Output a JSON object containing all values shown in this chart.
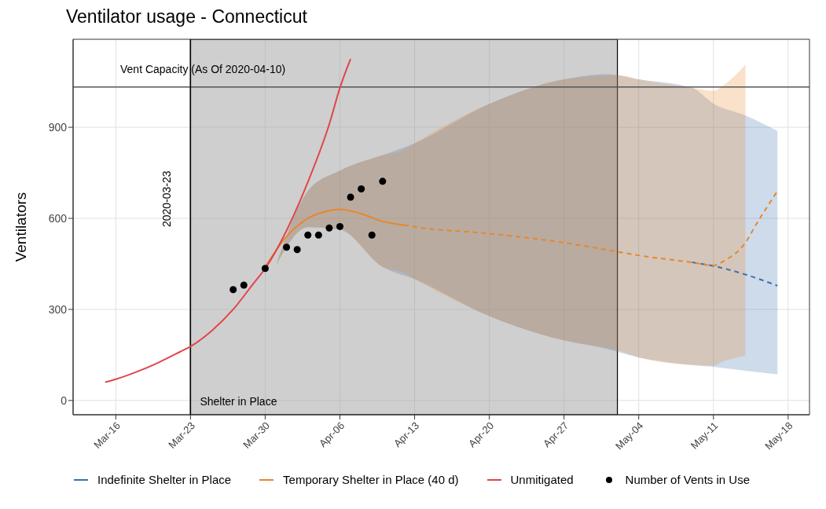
{
  "chart_data": {
    "type": "line",
    "title": "Ventilator usage - Connecticut",
    "ylabel": "Ventilators",
    "xlim": [
      "2020-03-12",
      "2020-05-20"
    ],
    "xticks": [
      {
        "value": "2020-03-16",
        "label": "Mar-16"
      },
      {
        "value": "2020-03-23",
        "label": "Mar-23"
      },
      {
        "value": "2020-03-30",
        "label": "Mar-30"
      },
      {
        "value": "2020-04-06",
        "label": "Apr-06"
      },
      {
        "value": "2020-04-13",
        "label": "Apr-13"
      },
      {
        "value": "2020-04-20",
        "label": "Apr-20"
      },
      {
        "value": "2020-04-27",
        "label": "Apr-27"
      },
      {
        "value": "2020-05-04",
        "label": "May-04"
      },
      {
        "value": "2020-05-11",
        "label": "May-11"
      },
      {
        "value": "2020-05-18",
        "label": "May-18"
      }
    ],
    "ylim": [
      -47,
      1190
    ],
    "yticks": [
      0,
      300,
      600,
      900
    ],
    "grid": true,
    "legend": "bottom",
    "ref_lines": [
      {
        "axis": "y",
        "value": 1033,
        "label": "Vent Capacity (As Of 2020-04-10)",
        "color": "#555555"
      },
      {
        "axis": "x",
        "value": "2020-03-23",
        "label": "2020-03-23",
        "color": "#000000"
      }
    ],
    "bands": [
      {
        "axis": "x",
        "from": "2020-03-23",
        "to": "2020-05-02",
        "label": "Shelter in Place",
        "color": "#a0a0a0"
      }
    ],
    "series": [
      {
        "name": "Indefinite Shelter in Place",
        "color": "#3d6fae",
        "line_style": "dashed",
        "x": [
          "2020-03-31",
          "2020-04-03",
          "2020-04-06",
          "2020-04-10",
          "2020-04-13",
          "2020-04-20",
          "2020-04-27",
          "2020-05-01",
          "2020-05-04",
          "2020-05-09",
          "2020-05-11",
          "2020-05-14",
          "2020-05-17"
        ],
        "values": [
          null,
          null,
          null,
          null,
          null,
          null,
          null,
          null,
          null,
          455,
          443,
          415,
          378
        ],
        "lower": [
          445,
          571,
          563,
          440,
          400,
          278,
          198,
          170,
          142,
          117,
          111,
          98,
          86
        ],
        "upper": [
          445,
          690,
          757,
          808,
          847,
          977,
          1058,
          1075,
          1058,
          1030,
          978,
          939,
          888
        ]
      },
      {
        "name": "Temporary Shelter in Place (40 d)",
        "color": "#e8862a",
        "line_style": "solid",
        "x": [
          "2020-03-30",
          "2020-04-01",
          "2020-04-03",
          "2020-04-05",
          "2020-04-06",
          "2020-04-08",
          "2020-04-10",
          "2020-04-12"
        ],
        "values": [
          440,
          540,
          600,
          625,
          630,
          615,
          590,
          578
        ]
      },
      {
        "color": "#e8862a",
        "line_style": "dashed",
        "x": [
          "2020-03-31",
          "2020-04-03",
          "2020-04-06",
          "2020-04-10",
          "2020-04-12",
          "2020-04-13",
          "2020-04-20",
          "2020-04-27",
          "2020-05-02",
          "2020-05-04",
          "2020-05-09",
          "2020-05-11",
          "2020-05-12",
          "2020-05-14",
          "2020-05-15",
          "2020-05-17"
        ],
        "values": [
          null,
          null,
          null,
          null,
          578,
          572,
          550,
          520,
          490,
          478,
          455,
          445,
          460,
          520,
          580,
          690
        ],
        "lower": [
          445,
          571,
          563,
          440,
          420,
          400,
          278,
          198,
          165,
          142,
          117,
          115,
          130,
          148,
          null,
          null
        ],
        "upper": [
          445,
          690,
          757,
          808,
          825,
          847,
          977,
          1058,
          1072,
          1058,
          1030,
          1020,
          1040,
          1106,
          null,
          null
        ]
      },
      {
        "name": "Unmitigated",
        "color": "#e0454a",
        "line_style": "solid",
        "x": [
          "2020-03-15",
          "2020-03-16",
          "2020-03-18",
          "2020-03-20",
          "2020-03-22",
          "2020-03-23",
          "2020-03-25",
          "2020-03-27",
          "2020-03-29",
          "2020-03-30",
          "2020-04-01",
          "2020-04-03",
          "2020-04-05",
          "2020-04-06",
          "2020-04-07"
        ],
        "values": [
          60,
          70,
          95,
          125,
          160,
          178,
          230,
          300,
          390,
          435,
          560,
          720,
          910,
          1030,
          1125
        ]
      },
      {
        "name": "Number of Vents in Use",
        "type": "scatter",
        "color": "#000000",
        "marker": "circle",
        "x": [
          "2020-03-27",
          "2020-03-28",
          "2020-03-30",
          "2020-04-01",
          "2020-04-02",
          "2020-04-03",
          "2020-04-04",
          "2020-04-05",
          "2020-04-06",
          "2020-04-07",
          "2020-04-08",
          "2020-04-09",
          "2020-04-10"
        ],
        "values": [
          365,
          380,
          435,
          505,
          497,
          545,
          545,
          568,
          573,
          670,
          697,
          545,
          722
        ]
      }
    ]
  }
}
